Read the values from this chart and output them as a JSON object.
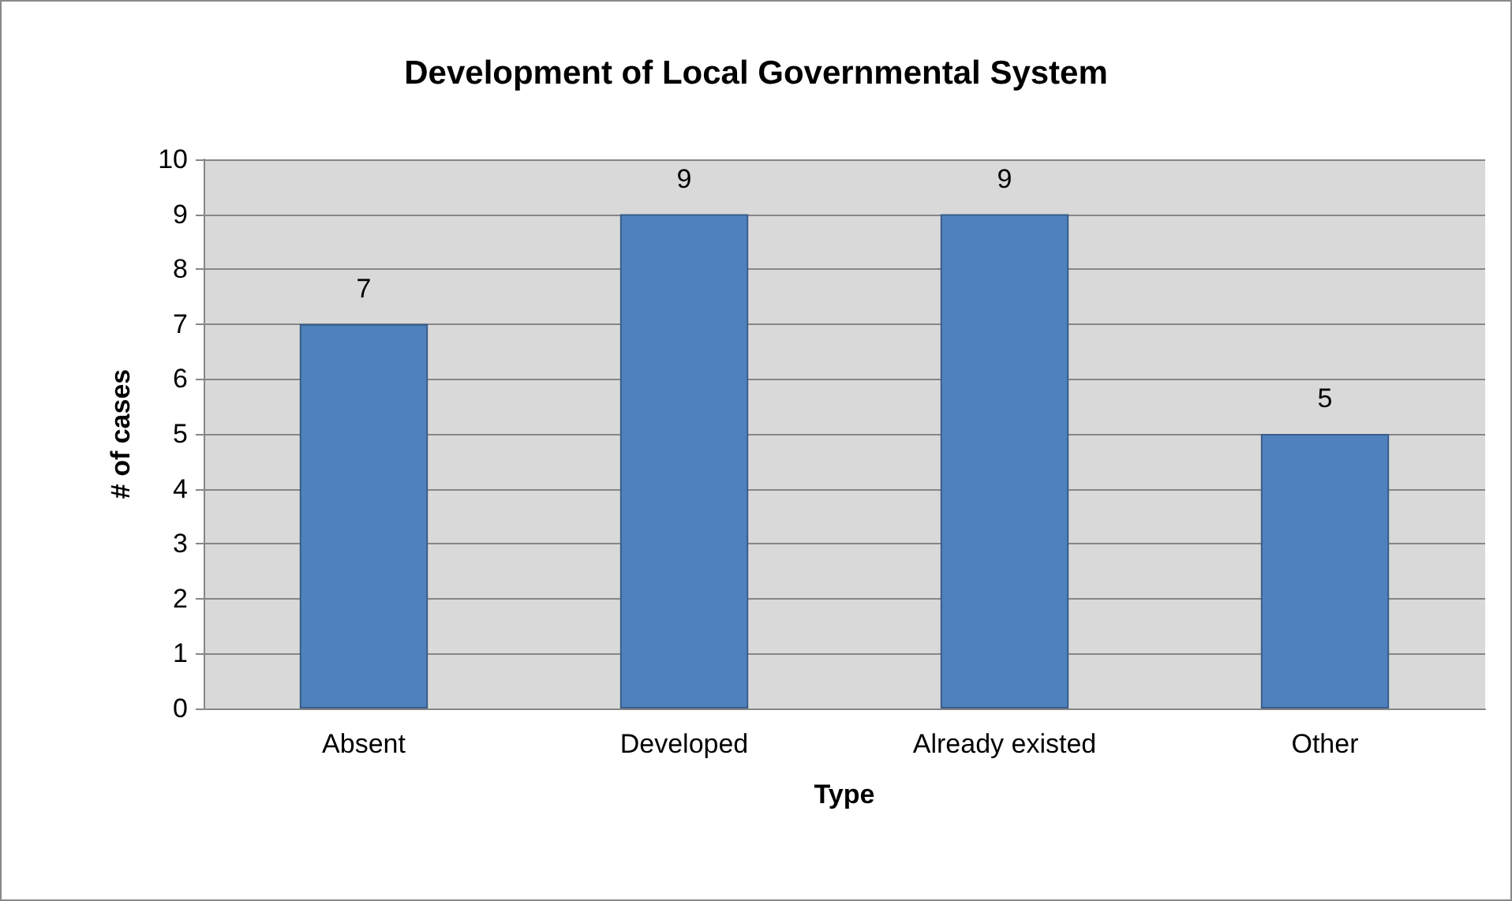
{
  "chart_data": {
    "type": "bar",
    "title": "Development of Local Governmental System",
    "xlabel": "Type",
    "ylabel": "# of cases",
    "categories": [
      "Absent",
      "Developed",
      "Already existed",
      "Other"
    ],
    "values": [
      7,
      9,
      9,
      5
    ],
    "color": "#4f81bd",
    "ylim": [
      0,
      10
    ],
    "yticks": [
      0,
      1,
      2,
      3,
      4,
      5,
      6,
      7,
      8,
      9,
      10
    ],
    "grid": "y",
    "data_labels": true
  }
}
